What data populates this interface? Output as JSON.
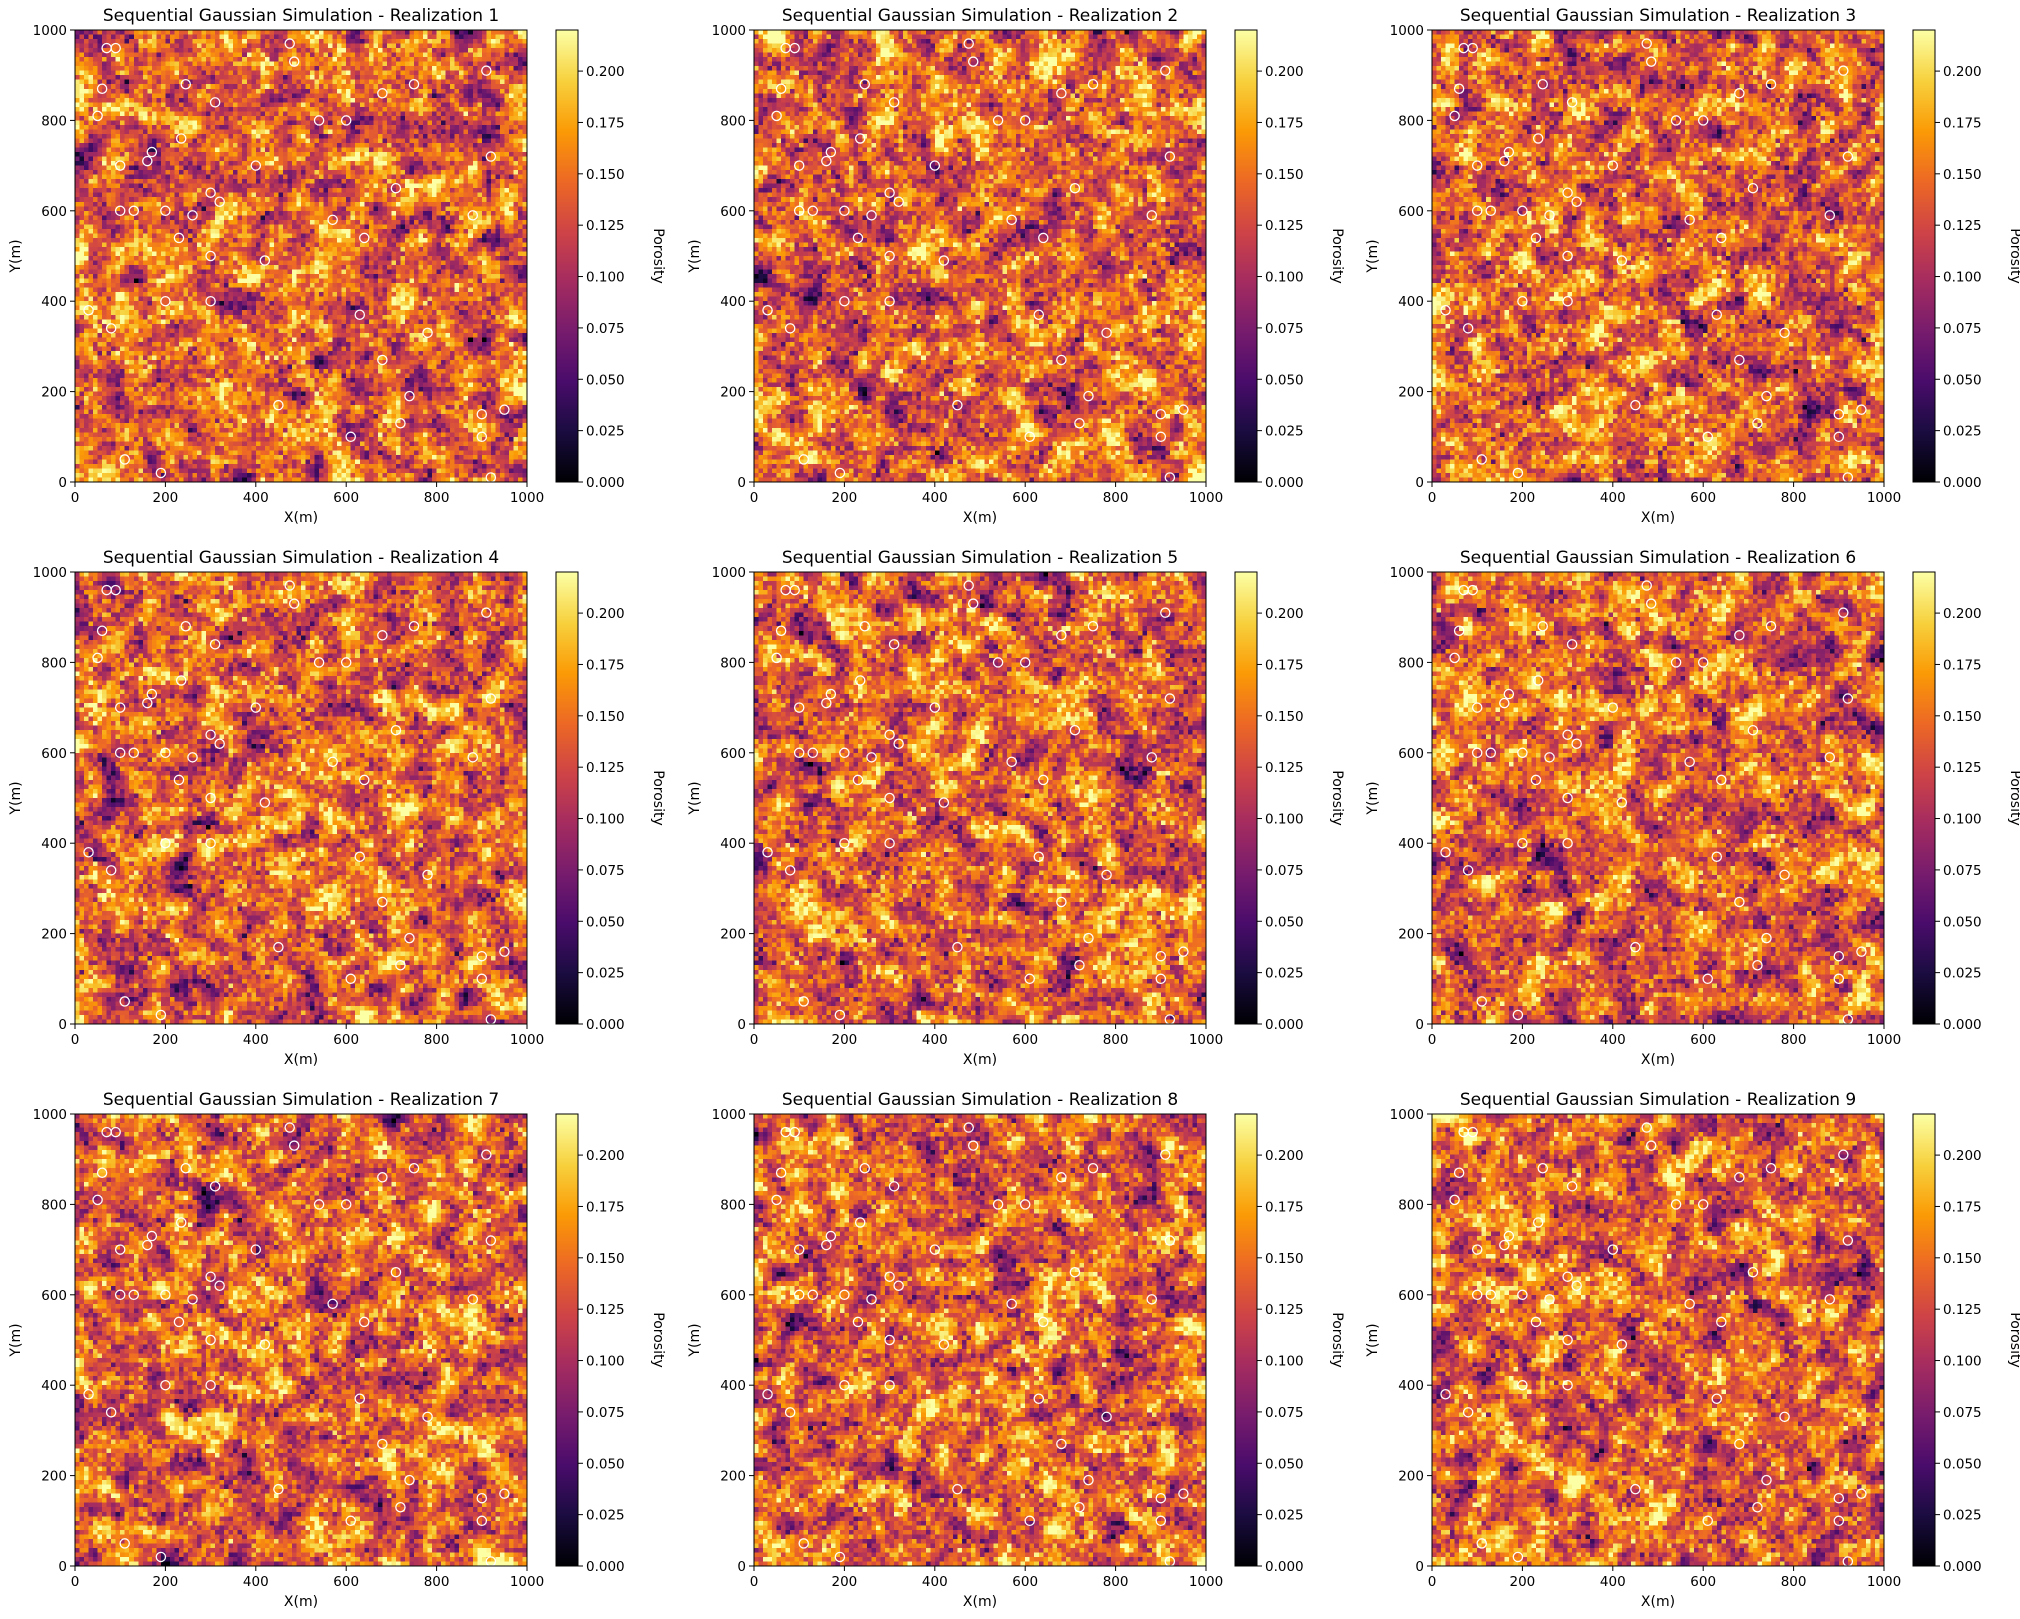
{
  "figure": {
    "panels": [
      {
        "title": "Sequential Gaussian Simulation - Realization 1",
        "xlabel": "X(m)",
        "ylabel": "Y(m)",
        "colorbar_label": "Porosity"
      },
      {
        "title": "Sequential Gaussian Simulation - Realization 2",
        "xlabel": "X(m)",
        "ylabel": "Y(m)",
        "colorbar_label": "Porosity"
      },
      {
        "title": "Sequential Gaussian Simulation - Realization 3",
        "xlabel": "X(m)",
        "ylabel": "Y(m)",
        "colorbar_label": "Porosity"
      },
      {
        "title": "Sequential Gaussian Simulation - Realization 4",
        "xlabel": "X(m)",
        "ylabel": "Y(m)",
        "colorbar_label": "Porosity"
      },
      {
        "title": "Sequential Gaussian Simulation - Realization 5",
        "xlabel": "X(m)",
        "ylabel": "Y(m)",
        "colorbar_label": "Porosity"
      },
      {
        "title": "Sequential Gaussian Simulation - Realization 6",
        "xlabel": "X(m)",
        "ylabel": "Y(m)",
        "colorbar_label": "Porosity"
      },
      {
        "title": "Sequential Gaussian Simulation - Realization 7",
        "xlabel": "X(m)",
        "ylabel": "Y(m)",
        "colorbar_label": "Porosity"
      },
      {
        "title": "Sequential Gaussian Simulation - Realization 8",
        "xlabel": "X(m)",
        "ylabel": "Y(m)",
        "colorbar_label": "Porosity"
      },
      {
        "title": "Sequential Gaussian Simulation - Realization 9",
        "xlabel": "X(m)",
        "ylabel": "Y(m)",
        "colorbar_label": "Porosity"
      }
    ]
  },
  "chart_data": {
    "type": "heatmap",
    "colormap": "inferno",
    "colormap_stops": [
      "#000004",
      "#1b0c41",
      "#4a0c6b",
      "#781c6d",
      "#a52c60",
      "#cf4446",
      "#ed6925",
      "#fb9b06",
      "#f7d13d",
      "#fcffa4"
    ],
    "grid_cells": [
      100,
      100
    ],
    "xlim": [
      0,
      1000
    ],
    "ylim": [
      0,
      1000
    ],
    "xticks": [
      0,
      200,
      400,
      600,
      800,
      1000
    ],
    "yticks": [
      0,
      200,
      400,
      600,
      800,
      1000
    ],
    "clim": [
      0.0,
      0.22
    ],
    "colorbar_ticks": [
      "0.000",
      "0.025",
      "0.050",
      "0.075",
      "0.100",
      "0.125",
      "0.150",
      "0.175",
      "0.200"
    ],
    "colorbar_tick_values": [
      0.0,
      0.025,
      0.05,
      0.075,
      0.1,
      0.125,
      0.15,
      0.175,
      0.2
    ],
    "mean_porosity_estimate": 0.14,
    "conditioning_wells": {
      "marker": "circle",
      "edge_color": "#ffffff",
      "points": [
        [
          70,
          960
        ],
        [
          90,
          960
        ],
        [
          475,
          970
        ],
        [
          910,
          910
        ],
        [
          485,
          930
        ],
        [
          245,
          880
        ],
        [
          60,
          870
        ],
        [
          310,
          840
        ],
        [
          680,
          860
        ],
        [
          750,
          880
        ],
        [
          50,
          810
        ],
        [
          540,
          800
        ],
        [
          600,
          800
        ],
        [
          235,
          760
        ],
        [
          170,
          730
        ],
        [
          160,
          710
        ],
        [
          100,
          700
        ],
        [
          400,
          700
        ],
        [
          920,
          720
        ],
        [
          100,
          600
        ],
        [
          130,
          600
        ],
        [
          200,
          600
        ],
        [
          300,
          640
        ],
        [
          320,
          620
        ],
        [
          260,
          590
        ],
        [
          230,
          540
        ],
        [
          300,
          500
        ],
        [
          570,
          580
        ],
        [
          640,
          540
        ],
        [
          710,
          650
        ],
        [
          880,
          590
        ],
        [
          420,
          490
        ],
        [
          30,
          380
        ],
        [
          200,
          400
        ],
        [
          300,
          400
        ],
        [
          630,
          370
        ],
        [
          80,
          340
        ],
        [
          780,
          330
        ],
        [
          680,
          270
        ],
        [
          740,
          190
        ],
        [
          450,
          170
        ],
        [
          720,
          130
        ],
        [
          610,
          100
        ],
        [
          900,
          150
        ],
        [
          900,
          100
        ],
        [
          950,
          160
        ],
        [
          110,
          50
        ],
        [
          190,
          20
        ],
        [
          920,
          10
        ]
      ]
    },
    "realizations": [
      {
        "name": "Realization 1"
      },
      {
        "name": "Realization 2"
      },
      {
        "name": "Realization 3"
      },
      {
        "name": "Realization 4"
      },
      {
        "name": "Realization 5"
      },
      {
        "name": "Realization 6"
      },
      {
        "name": "Realization 7"
      },
      {
        "name": "Realization 8"
      },
      {
        "name": "Realization 9"
      }
    ]
  }
}
